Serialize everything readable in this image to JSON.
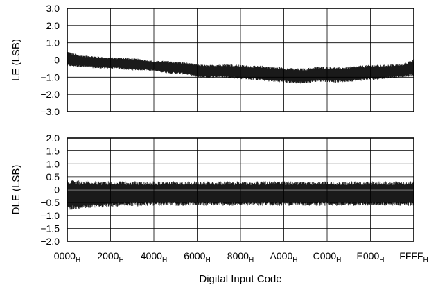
{
  "chart_data": [
    {
      "type": "line",
      "ylabel": "LE (LSB)",
      "ylim": [
        -3.0,
        3.0
      ],
      "yticks": [
        "3.0",
        "2.0",
        "1.0",
        "0",
        "−1.0",
        "−2.0",
        "−3.0"
      ],
      "ytick_values": [
        3,
        2,
        1,
        0,
        -1,
        -2,
        -3
      ],
      "grid": true,
      "band_color": "#1a1a1a",
      "series": [
        {
          "x": [
            0,
            2048,
            4096,
            6144,
            8192,
            10240,
            12288,
            14336,
            16384,
            18432,
            20480,
            22528,
            24576,
            26624,
            28672,
            30720,
            32768,
            34816,
            36864,
            38912,
            40960,
            43008,
            45056,
            47104,
            49152,
            51200,
            53248,
            55296,
            57344,
            59392,
            61440,
            63488,
            65535
          ],
          "upper": [
            0.45,
            0.25,
            0.2,
            0.15,
            0.1,
            0.1,
            0.05,
            0.0,
            -0.1,
            -0.1,
            -0.15,
            -0.2,
            -0.3,
            -0.35,
            -0.3,
            -0.3,
            -0.35,
            -0.4,
            -0.4,
            -0.45,
            -0.5,
            -0.55,
            -0.55,
            -0.45,
            -0.45,
            -0.5,
            -0.45,
            -0.4,
            -0.35,
            -0.35,
            -0.3,
            -0.3,
            0.0
          ],
          "lower": [
            -0.3,
            -0.35,
            -0.4,
            -0.45,
            -0.45,
            -0.5,
            -0.55,
            -0.55,
            -0.6,
            -0.7,
            -0.75,
            -0.8,
            -0.95,
            -1.0,
            -0.95,
            -1.0,
            -1.05,
            -1.1,
            -1.15,
            -1.2,
            -1.25,
            -1.3,
            -1.3,
            -1.2,
            -1.2,
            -1.25,
            -1.2,
            -1.15,
            -1.1,
            -1.05,
            -1.0,
            -0.95,
            -0.85
          ]
        }
      ]
    },
    {
      "type": "line",
      "ylabel": "DLE (LSB)",
      "ylim": [
        -2.0,
        2.0
      ],
      "yticks": [
        "2.0",
        "1.5",
        "1.0",
        "0.5",
        "0",
        "−0.5",
        "−1.0",
        "−1.5",
        "−2.0"
      ],
      "ytick_values": [
        2,
        1.5,
        1,
        0.5,
        0,
        -0.5,
        -1,
        -1.5,
        -2
      ],
      "grid": true,
      "band_color": "#1a1a1a",
      "series": [
        {
          "x": [
            0,
            8192,
            16384,
            24576,
            32768,
            40960,
            49152,
            57344,
            65535
          ],
          "upper": [
            0.28,
            0.25,
            0.25,
            0.25,
            0.25,
            0.25,
            0.25,
            0.25,
            0.25
          ],
          "lower": [
            -0.7,
            -0.6,
            -0.55,
            -0.55,
            -0.55,
            -0.55,
            -0.55,
            -0.55,
            -0.55
          ]
        }
      ],
      "xlabel": "Digital Input Code",
      "xticks": [
        {
          "main": "0000",
          "sub": "H"
        },
        {
          "main": "2000",
          "sub": "H"
        },
        {
          "main": "4000",
          "sub": "H"
        },
        {
          "main": "6000",
          "sub": "H"
        },
        {
          "main": "8000",
          "sub": "H"
        },
        {
          "main": "A000",
          "sub": "H"
        },
        {
          "main": "C000",
          "sub": "H"
        },
        {
          "main": "E000",
          "sub": "H"
        },
        {
          "main": "FFFF",
          "sub": "H"
        }
      ],
      "xtick_values": [
        0,
        8192,
        16384,
        24576,
        32768,
        40960,
        49152,
        57344,
        65535
      ],
      "xlim": [
        0,
        65535
      ]
    }
  ]
}
